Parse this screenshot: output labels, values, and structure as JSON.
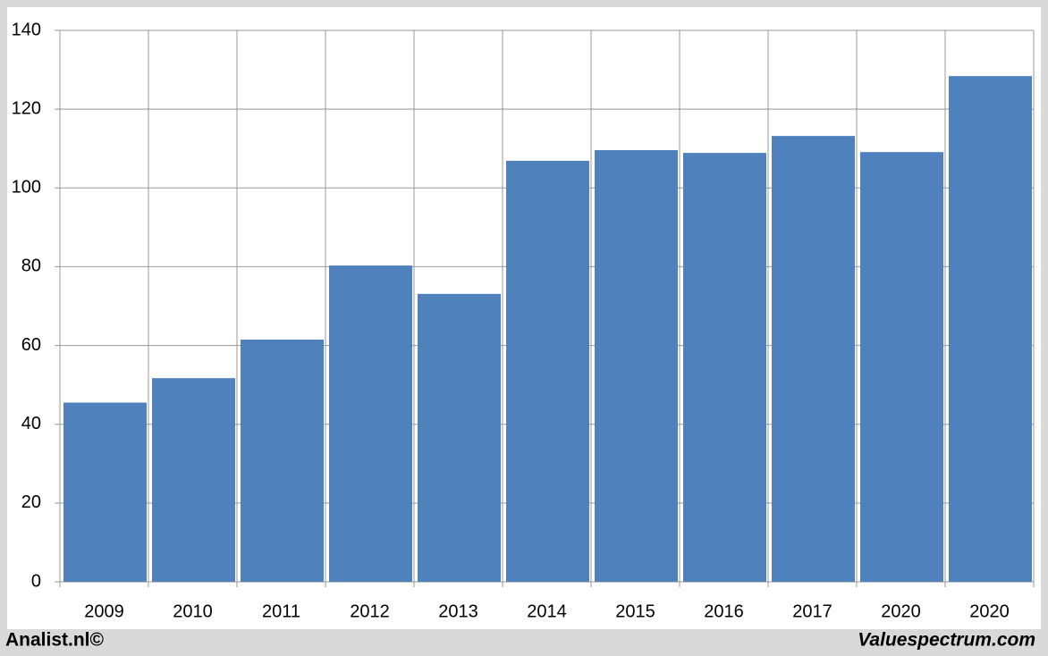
{
  "chart_data": {
    "type": "bar",
    "categories": [
      "2009",
      "2010",
      "2011",
      "2012",
      "2013",
      "2014",
      "2015",
      "2016",
      "2017",
      "2020",
      "2020"
    ],
    "values": [
      45.5,
      51.7,
      61.5,
      80.3,
      73.1,
      106.9,
      109.6,
      108.9,
      113.2,
      109.1,
      128.4
    ],
    "color": "#4f81bd",
    "ylim": [
      0,
      140
    ],
    "yticks": [
      0,
      20,
      40,
      60,
      80,
      100,
      120,
      140
    ],
    "grid": true,
    "footer_left": "Analist.nl©",
    "footer_right": "Valuespectrum.com"
  }
}
